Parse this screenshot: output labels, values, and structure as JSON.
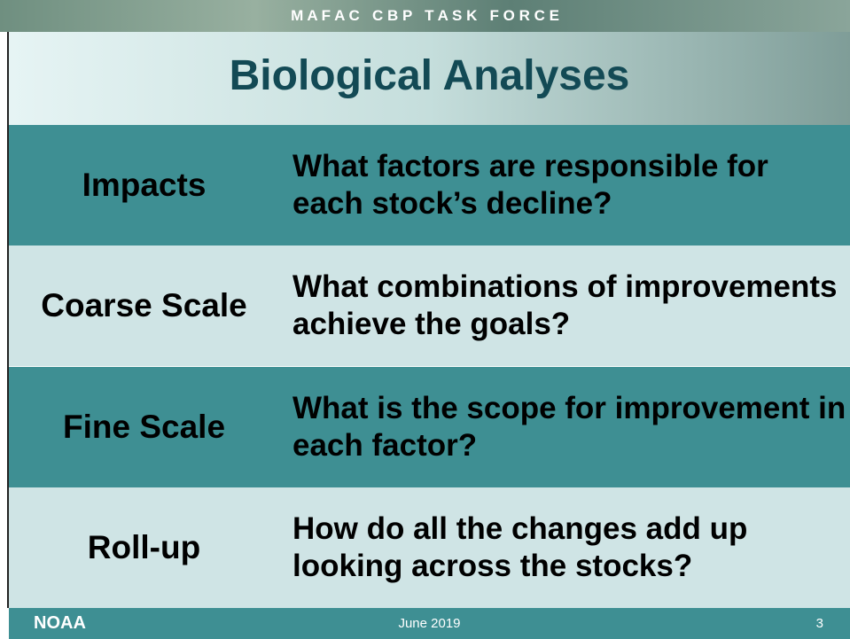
{
  "header": {
    "banner": "M A F A C   C B P   T A S K   F O R C E",
    "title": "Biological Analyses"
  },
  "table": {
    "rows": [
      [
        "Impacts",
        "What factors are responsible for each stock’s decline?"
      ],
      [
        "Coarse Scale",
        "What combinations of improvements achieve the goals?"
      ],
      [
        "Fine Scale",
        "What is the scope for improvement in each factor?"
      ],
      [
        "Roll-up",
        "How do all the changes add up looking across the stocks?"
      ]
    ]
  },
  "footer": {
    "logo": "NOAA",
    "date": "June 2019",
    "page": "3"
  }
}
